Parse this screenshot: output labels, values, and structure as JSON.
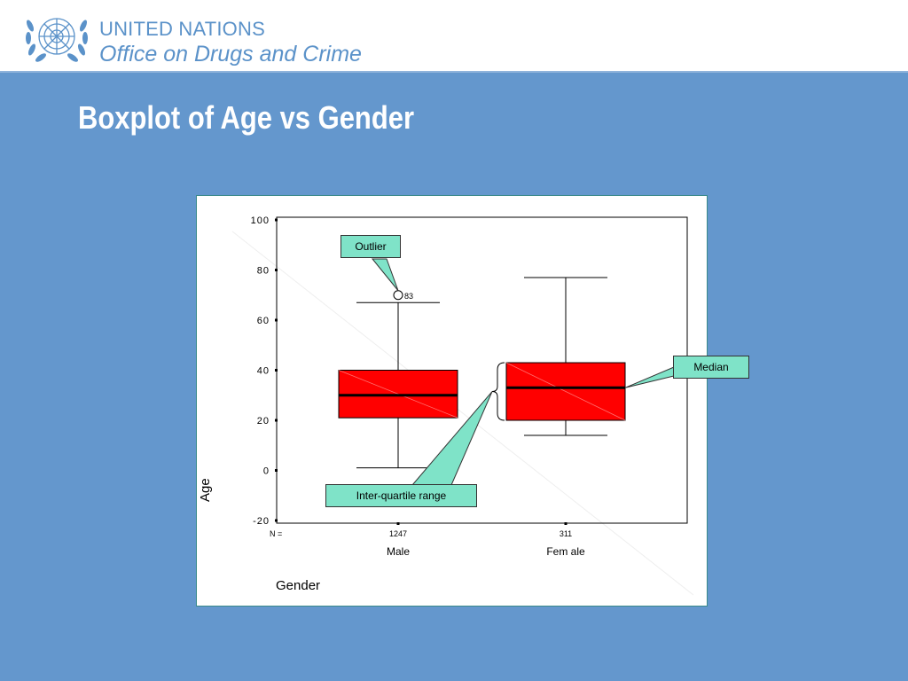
{
  "header": {
    "org_name": "UNITED NATIONS",
    "org_office": "Office on Drugs and Crime",
    "emblem_icon": "un-emblem-icon"
  },
  "slide": {
    "title": "Boxplot of Age vs Gender"
  },
  "colors": {
    "background": "#6497cd",
    "box_fill": "#ff0000",
    "callout_fill": "#7fe3c8",
    "brand_blue": "#5b92c9"
  },
  "chart_data": {
    "type": "boxplot",
    "xlabel": "Gender",
    "ylabel": "Age",
    "ylim": [
      -20,
      100
    ],
    "yticks": [
      -20,
      0,
      20,
      40,
      60,
      80,
      100
    ],
    "n_label": "N =",
    "categories": [
      {
        "name": "Male",
        "n": "1247",
        "whisker_low": 1,
        "q1": 21,
        "median": 30,
        "q3": 40,
        "whisker_high": 67,
        "outliers": [
          {
            "value": 70,
            "label": "83"
          }
        ]
      },
      {
        "name": "Female",
        "display_name": "Fem ale",
        "n": "311",
        "whisker_low": 14,
        "q1": 20,
        "median": 33,
        "q3": 43,
        "whisker_high": 77,
        "outliers": []
      }
    ],
    "annotations": {
      "outlier": "Outlier",
      "median": "Median",
      "iqr": "Inter-quartile range"
    }
  }
}
